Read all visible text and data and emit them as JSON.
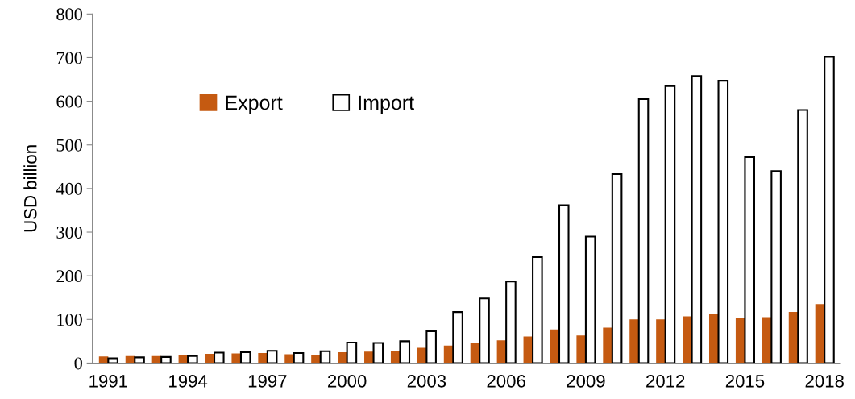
{
  "chart_data": {
    "type": "bar",
    "ylabel": "USD billion",
    "categories": [
      "1991",
      null,
      null,
      "1994",
      null,
      null,
      "1997",
      null,
      null,
      "2000",
      null,
      null,
      "2003",
      null,
      null,
      "2006",
      null,
      null,
      "2009",
      null,
      null,
      "2012",
      null,
      null,
      "2015",
      null,
      null,
      "2018"
    ],
    "series": [
      {
        "name": "Export",
        "color": "#c55a11",
        "values": [
          15,
          16,
          16,
          19,
          21,
          22,
          23,
          20,
          19,
          25,
          26,
          28,
          35,
          40,
          47,
          52,
          61,
          77,
          63,
          81,
          100,
          100,
          107,
          113,
          104,
          105,
          117,
          135
        ]
      },
      {
        "name": "Import",
        "color": "#ffffff",
        "values": [
          11,
          13,
          14,
          16,
          24,
          25,
          28,
          23,
          27,
          47,
          46,
          50,
          73,
          117,
          148,
          187,
          243,
          362,
          290,
          433,
          605,
          635,
          658,
          647,
          472,
          440,
          580,
          702
        ]
      }
    ],
    "ylim": [
      0,
      800
    ],
    "yticks": [
      0,
      100,
      200,
      300,
      400,
      500,
      600,
      700,
      800
    ],
    "legend": "top left",
    "grid": false
  }
}
